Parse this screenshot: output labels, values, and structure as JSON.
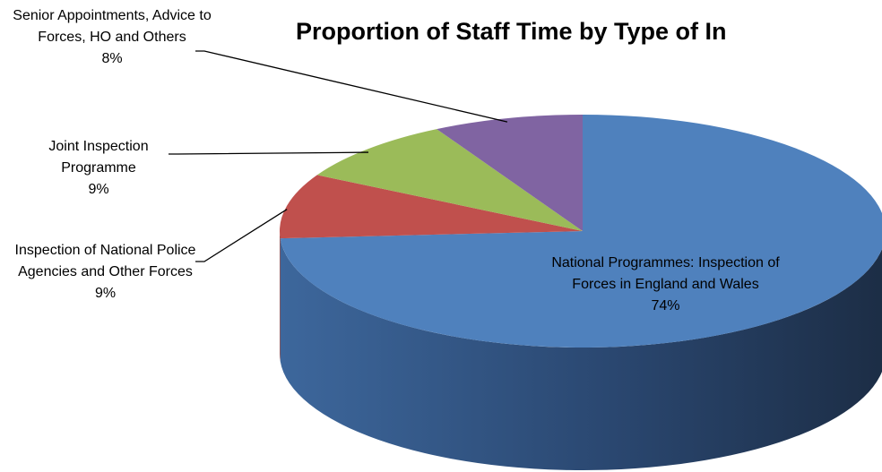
{
  "chart_data": {
    "type": "pie",
    "title": "Proportion of Staff Time by Type of In",
    "categories": [
      "National Programmes: Inspection of Forces in England and Wales",
      "Inspection of National Police Agencies and Other Forces",
      "Joint Inspection Programme",
      "Senior Appointments, Advice to Forces, HO and Others"
    ],
    "values": [
      74,
      9,
      9,
      8
    ],
    "value_labels": [
      "74%",
      "9%",
      "9%",
      "8%"
    ],
    "colors": [
      "#4f81bd",
      "#c0504d",
      "#9bbb59",
      "#8064a2"
    ],
    "start_angle": 0,
    "direction": "clockwise"
  }
}
